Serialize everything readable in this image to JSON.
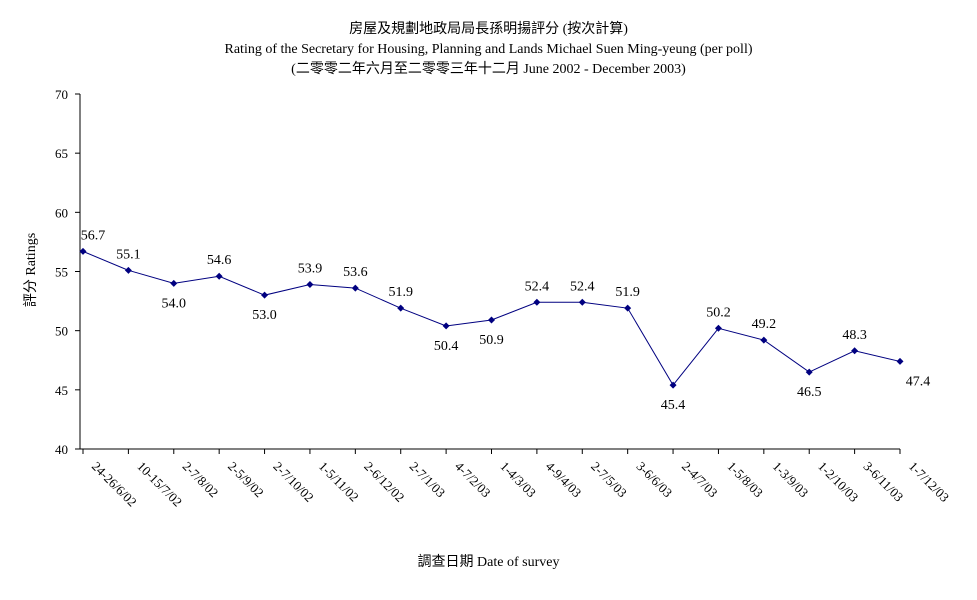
{
  "chart_data": {
    "type": "line",
    "title_lines": [
      "房屋及規劃地政局局長孫明揚評分 (按次計算)",
      "Rating of the Secretary for Housing, Planning and Lands Michael Suen Ming-yeung (per poll)",
      "(二零零二年六月至二零零三年十二月 June 2002 - December 2003)"
    ],
    "xlabel": "調查日期 Date of survey",
    "ylabel": "評分 Ratings",
    "ylim": [
      40,
      70
    ],
    "yticks": [
      40,
      45,
      50,
      55,
      60,
      65,
      70
    ],
    "grid": false,
    "line_color": "#000080",
    "categories": [
      "24-26/6/02",
      "10-15/7/02",
      "2-7/8/02",
      "2-5/9/02",
      "2-7/10/02",
      "1-5/11/02",
      "2-6/12/02",
      "2-7/1/03",
      "4-7/2/03",
      "1-4/3/03",
      "4-9/4/03",
      "2-7/5/03",
      "3-6/6/03",
      "2-4/7/03",
      "1-5/8/03",
      "1-3/9/03",
      "1-2/10/03",
      "3-6/11/03",
      "1-7/12/03"
    ],
    "values": [
      56.7,
      55.1,
      54.0,
      54.6,
      53.0,
      53.9,
      53.6,
      51.9,
      50.4,
      50.9,
      52.4,
      52.4,
      51.9,
      45.4,
      50.2,
      49.2,
      46.5,
      48.3,
      47.4
    ],
    "data_labels": [
      "56.7",
      "55.1",
      "54.0",
      "54.6",
      "53.0",
      "53.9",
      "53.6",
      "51.9",
      "50.4",
      "50.9",
      "52.4",
      "52.4",
      "51.9",
      "45.4",
      "50.2",
      "49.2",
      "46.5",
      "48.3",
      "47.4"
    ]
  }
}
